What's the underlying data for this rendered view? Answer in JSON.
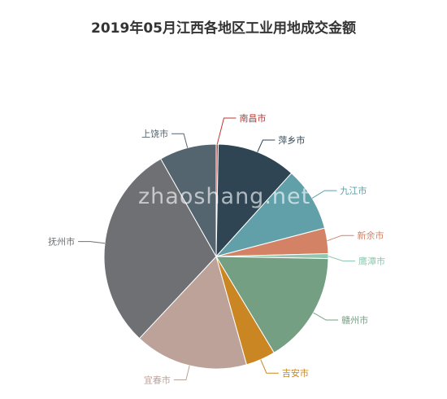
{
  "chart_data": {
    "type": "pie",
    "title": "2019年05月江西各地区工业用地成交金额",
    "categories": [
      "南昌市",
      "萍乡市",
      "九江市",
      "新余市",
      "鹰潭市",
      "赣州市",
      "吉安市",
      "宜春市",
      "抚州市",
      "上饶市"
    ],
    "values": [
      0.3,
      11.5,
      9.3,
      3.7,
      0.7,
      16.2,
      4.3,
      16.5,
      30.0,
      8.3
    ],
    "colors": [
      "#c23531",
      "#2f4554",
      "#61a0a8",
      "#d48265",
      "#91c7ae",
      "#749f83",
      "#ca8622",
      "#bda29a",
      "#6e7074",
      "#546570"
    ],
    "legend": "none"
  },
  "watermark": "zhaoshang.net"
}
